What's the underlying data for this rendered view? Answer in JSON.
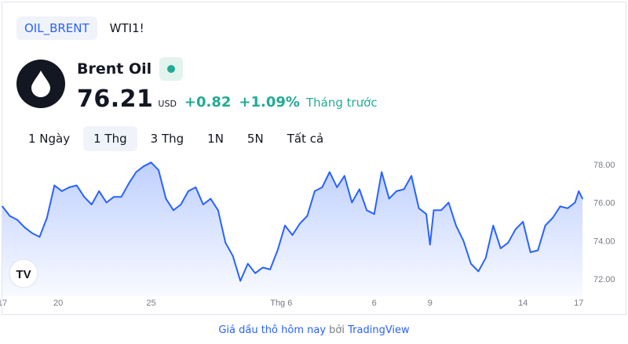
{
  "symbol_tabs": [
    {
      "label": "OIL_BRENT",
      "active": true
    },
    {
      "label": "WTI1!",
      "active": false
    }
  ],
  "instrument": {
    "name": "Brent Oil",
    "price": "76.21",
    "currency": "USD",
    "change": "+0.82",
    "change_percent": "+1.09%",
    "period_label": "Tháng trước",
    "status_color": "#22ab94"
  },
  "range_tabs": [
    {
      "label": "1 Ngày",
      "active": false
    },
    {
      "label": "1 Thg",
      "active": true
    },
    {
      "label": "3 Thg",
      "active": false
    },
    {
      "label": "1N",
      "active": false
    },
    {
      "label": "5N",
      "active": false
    },
    {
      "label": "Tất cả",
      "active": false
    }
  ],
  "chart_data": {
    "type": "area",
    "y_ticks": [
      "78.00",
      "76.00",
      "74.00",
      "72.00"
    ],
    "ylim": [
      71.1,
      78.4
    ],
    "x_ticks": [
      {
        "label": "17",
        "t": 0
      },
      {
        "label": "20",
        "t": 3
      },
      {
        "label": "25",
        "t": 8
      },
      {
        "label": "Thg 6",
        "t": 15
      },
      {
        "label": "6",
        "t": 20
      },
      {
        "label": "9",
        "t": 23
      },
      {
        "label": "14",
        "t": 28
      },
      {
        "label": "17",
        "t": 31
      }
    ],
    "series": [
      {
        "x": [
          0,
          0.4,
          0.8,
          1.2,
          1.6,
          2.0,
          2.4,
          2.8,
          3.2,
          3.6,
          4.0,
          4.4,
          4.8,
          5.2,
          5.6,
          6.0,
          6.4,
          6.8,
          7.2,
          7.6,
          8.0,
          8.4,
          8.8,
          9.2,
          9.6,
          10.0,
          10.4,
          10.8,
          11.2,
          11.6,
          12.0,
          12.4,
          12.8,
          13.2,
          13.6,
          14.0,
          14.4,
          14.8,
          15.2,
          15.6,
          16.0,
          16.4,
          16.8,
          17.2,
          17.6,
          18.0,
          18.4,
          18.8,
          19.2,
          19.6,
          20.0,
          20.4,
          20.8,
          21.2,
          21.6,
          22.0,
          22.4,
          22.8,
          23.0,
          23.2,
          23.6,
          24.0,
          24.4,
          24.8,
          25.2,
          25.6,
          26.0,
          26.4,
          26.8,
          27.2,
          27.6,
          28.0,
          28.4,
          28.8,
          29.2,
          29.6,
          30.0,
          30.4,
          30.8,
          31.0,
          31.2
        ],
        "values": [
          75.8,
          75.3,
          75.1,
          74.7,
          74.4,
          74.2,
          75.2,
          76.9,
          76.6,
          76.8,
          76.9,
          76.3,
          75.9,
          76.6,
          76.0,
          76.3,
          76.3,
          77.0,
          77.6,
          77.9,
          78.1,
          77.7,
          76.2,
          75.6,
          75.9,
          76.6,
          76.8,
          75.9,
          76.2,
          75.6,
          73.9,
          73.2,
          71.9,
          72.8,
          72.3,
          72.6,
          72.5,
          73.5,
          74.8,
          74.3,
          74.9,
          75.3,
          76.6,
          76.8,
          77.6,
          76.8,
          77.4,
          76.0,
          76.7,
          75.6,
          75.4,
          77.6,
          76.2,
          76.6,
          76.7,
          77.4,
          75.7,
          75.4,
          73.8,
          75.6,
          75.6,
          76.0,
          74.8,
          74.0,
          72.8,
          72.4,
          73.1,
          74.8,
          73.6,
          73.9,
          74.6,
          75.0,
          73.4,
          73.5,
          74.8,
          75.2,
          75.8,
          75.7,
          76.0,
          76.6,
          76.2
        ]
      }
    ]
  },
  "watermark": "TV",
  "footer": {
    "link_text": "Giá dầu thô hôm nay",
    "by_text": "bởi",
    "provider": "TradingView"
  }
}
